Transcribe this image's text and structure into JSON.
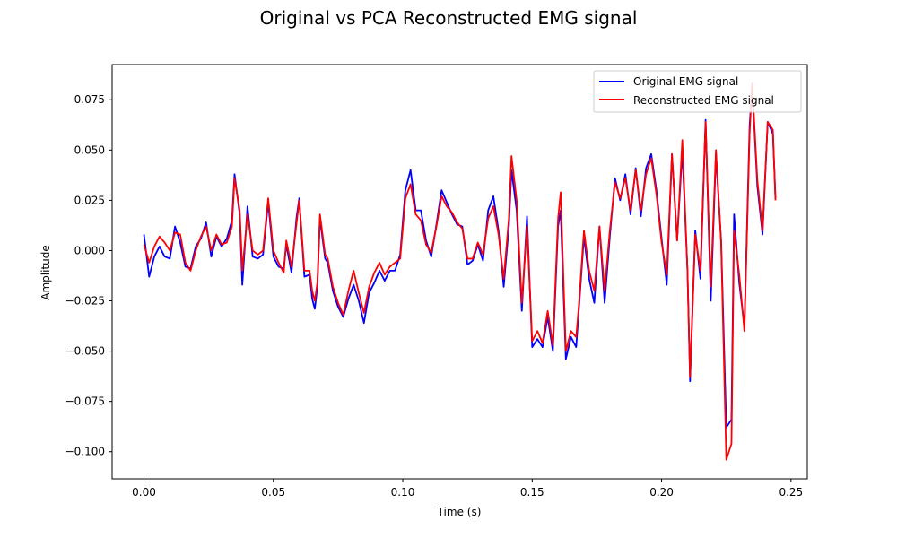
{
  "chart_data": {
    "type": "line",
    "title": "Original vs PCA Reconstructed EMG signal",
    "xlabel": "Time (s)",
    "ylabel": "Amplitude",
    "xlim": [
      -0.0123,
      0.2563
    ],
    "ylim": [
      -0.1135,
      0.0925
    ],
    "x_ticks": [
      0.0,
      0.05,
      0.1,
      0.15,
      0.2,
      0.25
    ],
    "x_tick_labels": [
      "0.00",
      "0.05",
      "0.10",
      "0.15",
      "0.20",
      "0.25"
    ],
    "y_ticks": [
      -0.1,
      -0.075,
      -0.05,
      -0.025,
      0.0,
      0.025,
      0.05,
      0.075
    ],
    "y_tick_labels": [
      "−0.100",
      "−0.075",
      "−0.050",
      "−0.025",
      "0.000",
      "0.025",
      "0.050",
      "0.075"
    ],
    "grid": false,
    "legend_position": "top-right",
    "series": [
      {
        "name": "Original EMG signal",
        "color": "#0000ff",
        "points": [
          [
            0.0,
            0.008
          ],
          [
            0.002,
            -0.013
          ],
          [
            0.004,
            -0.003
          ],
          [
            0.006,
            0.002
          ],
          [
            0.008,
            -0.003
          ],
          [
            0.01,
            -0.004
          ],
          [
            0.012,
            0.012
          ],
          [
            0.014,
            0.004
          ],
          [
            0.016,
            -0.008
          ],
          [
            0.018,
            -0.009
          ],
          [
            0.02,
            0.002
          ],
          [
            0.022,
            0.006
          ],
          [
            0.024,
            0.014
          ],
          [
            0.026,
            -0.003
          ],
          [
            0.028,
            0.007
          ],
          [
            0.03,
            0.002
          ],
          [
            0.032,
            0.006
          ],
          [
            0.034,
            0.015
          ],
          [
            0.035,
            0.038
          ],
          [
            0.037,
            0.018
          ],
          [
            0.038,
            -0.017
          ],
          [
            0.04,
            0.022
          ],
          [
            0.042,
            -0.003
          ],
          [
            0.044,
            -0.004
          ],
          [
            0.046,
            -0.002
          ],
          [
            0.048,
            0.024
          ],
          [
            0.05,
            -0.003
          ],
          [
            0.052,
            -0.008
          ],
          [
            0.054,
            -0.009
          ],
          [
            0.055,
            0.003
          ],
          [
            0.057,
            -0.011
          ],
          [
            0.059,
            0.017
          ],
          [
            0.06,
            0.026
          ],
          [
            0.062,
            -0.013
          ],
          [
            0.064,
            -0.012
          ],
          [
            0.065,
            -0.024
          ],
          [
            0.066,
            -0.029
          ],
          [
            0.067,
            -0.018
          ],
          [
            0.068,
            0.016
          ],
          [
            0.07,
            -0.004
          ],
          [
            0.071,
            -0.006
          ],
          [
            0.073,
            -0.02
          ],
          [
            0.075,
            -0.028
          ],
          [
            0.077,
            -0.033
          ],
          [
            0.079,
            -0.024
          ],
          [
            0.081,
            -0.017
          ],
          [
            0.083,
            -0.025
          ],
          [
            0.085,
            -0.036
          ],
          [
            0.087,
            -0.021
          ],
          [
            0.089,
            -0.016
          ],
          [
            0.091,
            -0.01
          ],
          [
            0.093,
            -0.015
          ],
          [
            0.095,
            -0.01
          ],
          [
            0.097,
            -0.01
          ],
          [
            0.099,
            -0.002
          ],
          [
            0.101,
            0.03
          ],
          [
            0.103,
            0.04
          ],
          [
            0.105,
            0.02
          ],
          [
            0.107,
            0.02
          ],
          [
            0.109,
            0.005
          ],
          [
            0.111,
            -0.003
          ],
          [
            0.113,
            0.013
          ],
          [
            0.115,
            0.03
          ],
          [
            0.117,
            0.024
          ],
          [
            0.119,
            0.018
          ],
          [
            0.121,
            0.013
          ],
          [
            0.123,
            0.012
          ],
          [
            0.125,
            -0.007
          ],
          [
            0.127,
            -0.005
          ],
          [
            0.129,
            0.003
          ],
          [
            0.131,
            -0.005
          ],
          [
            0.133,
            0.02
          ],
          [
            0.135,
            0.027
          ],
          [
            0.137,
            0.01
          ],
          [
            0.139,
            -0.018
          ],
          [
            0.141,
            0.012
          ],
          [
            0.142,
            0.04
          ],
          [
            0.144,
            0.02
          ],
          [
            0.146,
            -0.03
          ],
          [
            0.148,
            0.017
          ],
          [
            0.15,
            -0.048
          ],
          [
            0.152,
            -0.044
          ],
          [
            0.154,
            -0.048
          ],
          [
            0.156,
            -0.033
          ],
          [
            0.158,
            -0.05
          ],
          [
            0.16,
            0.012
          ],
          [
            0.161,
            0.02
          ],
          [
            0.163,
            -0.054
          ],
          [
            0.165,
            -0.043
          ],
          [
            0.167,
            -0.048
          ],
          [
            0.168,
            -0.03
          ],
          [
            0.17,
            0.007
          ],
          [
            0.172,
            -0.014
          ],
          [
            0.174,
            -0.026
          ],
          [
            0.176,
            0.012
          ],
          [
            0.178,
            -0.026
          ],
          [
            0.18,
            0.007
          ],
          [
            0.182,
            0.036
          ],
          [
            0.184,
            0.025
          ],
          [
            0.186,
            0.038
          ],
          [
            0.188,
            0.018
          ],
          [
            0.19,
            0.041
          ],
          [
            0.192,
            0.017
          ],
          [
            0.194,
            0.041
          ],
          [
            0.196,
            0.048
          ],
          [
            0.198,
            0.03
          ],
          [
            0.2,
            0.006
          ],
          [
            0.202,
            -0.017
          ],
          [
            0.204,
            0.048
          ],
          [
            0.206,
            0.005
          ],
          [
            0.208,
            0.05
          ],
          [
            0.21,
            -0.01
          ],
          [
            0.211,
            -0.065
          ],
          [
            0.213,
            0.01
          ],
          [
            0.215,
            -0.014
          ],
          [
            0.217,
            0.065
          ],
          [
            0.219,
            -0.025
          ],
          [
            0.221,
            0.048
          ],
          [
            0.223,
            0.005
          ],
          [
            0.225,
            -0.088
          ],
          [
            0.227,
            -0.084
          ],
          [
            0.228,
            0.018
          ],
          [
            0.23,
            -0.016
          ],
          [
            0.232,
            -0.038
          ],
          [
            0.234,
            0.062
          ],
          [
            0.235,
            0.082
          ],
          [
            0.237,
            0.032
          ],
          [
            0.239,
            0.008
          ],
          [
            0.241,
            0.064
          ],
          [
            0.243,
            0.058
          ],
          [
            0.244,
            0.026
          ]
        ]
      },
      {
        "name": "Reconstructed EMG signal",
        "color": "#ff0000",
        "points": [
          [
            0.0,
            0.003
          ],
          [
            0.002,
            -0.006
          ],
          [
            0.004,
            0.002
          ],
          [
            0.006,
            0.007
          ],
          [
            0.008,
            0.004
          ],
          [
            0.01,
            0.0
          ],
          [
            0.012,
            0.009
          ],
          [
            0.014,
            0.008
          ],
          [
            0.016,
            -0.006
          ],
          [
            0.018,
            -0.01
          ],
          [
            0.02,
            0.0
          ],
          [
            0.022,
            0.007
          ],
          [
            0.024,
            0.012
          ],
          [
            0.026,
            0.0
          ],
          [
            0.028,
            0.008
          ],
          [
            0.03,
            0.003
          ],
          [
            0.032,
            0.004
          ],
          [
            0.034,
            0.012
          ],
          [
            0.035,
            0.036
          ],
          [
            0.037,
            0.02
          ],
          [
            0.038,
            -0.01
          ],
          [
            0.04,
            0.018
          ],
          [
            0.042,
            0.0
          ],
          [
            0.044,
            -0.002
          ],
          [
            0.046,
            0.0
          ],
          [
            0.048,
            0.026
          ],
          [
            0.05,
            0.0
          ],
          [
            0.052,
            -0.006
          ],
          [
            0.054,
            -0.011
          ],
          [
            0.055,
            0.005
          ],
          [
            0.057,
            -0.008
          ],
          [
            0.059,
            0.014
          ],
          [
            0.06,
            0.025
          ],
          [
            0.062,
            -0.01
          ],
          [
            0.064,
            -0.01
          ],
          [
            0.065,
            -0.02
          ],
          [
            0.066,
            -0.025
          ],
          [
            0.067,
            -0.016
          ],
          [
            0.068,
            0.018
          ],
          [
            0.07,
            -0.002
          ],
          [
            0.071,
            -0.004
          ],
          [
            0.073,
            -0.018
          ],
          [
            0.075,
            -0.026
          ],
          [
            0.077,
            -0.032
          ],
          [
            0.079,
            -0.02
          ],
          [
            0.081,
            -0.01
          ],
          [
            0.083,
            -0.021
          ],
          [
            0.085,
            -0.031
          ],
          [
            0.087,
            -0.018
          ],
          [
            0.089,
            -0.011
          ],
          [
            0.091,
            -0.006
          ],
          [
            0.093,
            -0.012
          ],
          [
            0.095,
            -0.008
          ],
          [
            0.097,
            -0.006
          ],
          [
            0.099,
            -0.004
          ],
          [
            0.101,
            0.026
          ],
          [
            0.103,
            0.033
          ],
          [
            0.105,
            0.018
          ],
          [
            0.107,
            0.015
          ],
          [
            0.109,
            0.003
          ],
          [
            0.111,
            -0.001
          ],
          [
            0.113,
            0.012
          ],
          [
            0.115,
            0.027
          ],
          [
            0.117,
            0.022
          ],
          [
            0.119,
            0.019
          ],
          [
            0.121,
            0.014
          ],
          [
            0.123,
            0.011
          ],
          [
            0.125,
            -0.004
          ],
          [
            0.127,
            -0.004
          ],
          [
            0.129,
            0.004
          ],
          [
            0.131,
            -0.002
          ],
          [
            0.133,
            0.016
          ],
          [
            0.135,
            0.022
          ],
          [
            0.137,
            0.008
          ],
          [
            0.139,
            -0.014
          ],
          [
            0.141,
            0.016
          ],
          [
            0.142,
            0.047
          ],
          [
            0.144,
            0.025
          ],
          [
            0.146,
            -0.026
          ],
          [
            0.148,
            0.012
          ],
          [
            0.15,
            -0.045
          ],
          [
            0.152,
            -0.04
          ],
          [
            0.154,
            -0.046
          ],
          [
            0.156,
            -0.03
          ],
          [
            0.158,
            -0.047
          ],
          [
            0.16,
            0.016
          ],
          [
            0.161,
            0.029
          ],
          [
            0.163,
            -0.05
          ],
          [
            0.165,
            -0.04
          ],
          [
            0.167,
            -0.043
          ],
          [
            0.168,
            -0.028
          ],
          [
            0.17,
            0.01
          ],
          [
            0.172,
            -0.01
          ],
          [
            0.174,
            -0.02
          ],
          [
            0.176,
            0.012
          ],
          [
            0.178,
            -0.02
          ],
          [
            0.18,
            0.01
          ],
          [
            0.182,
            0.034
          ],
          [
            0.184,
            0.026
          ],
          [
            0.186,
            0.036
          ],
          [
            0.188,
            0.02
          ],
          [
            0.19,
            0.04
          ],
          [
            0.192,
            0.02
          ],
          [
            0.194,
            0.038
          ],
          [
            0.196,
            0.046
          ],
          [
            0.198,
            0.028
          ],
          [
            0.2,
            0.004
          ],
          [
            0.202,
            -0.012
          ],
          [
            0.204,
            0.048
          ],
          [
            0.206,
            0.005
          ],
          [
            0.208,
            0.055
          ],
          [
            0.21,
            -0.01
          ],
          [
            0.211,
            -0.063
          ],
          [
            0.213,
            0.008
          ],
          [
            0.215,
            -0.01
          ],
          [
            0.217,
            0.064
          ],
          [
            0.219,
            -0.018
          ],
          [
            0.221,
            0.05
          ],
          [
            0.223,
            0.004
          ],
          [
            0.225,
            -0.104
          ],
          [
            0.227,
            -0.096
          ],
          [
            0.228,
            0.01
          ],
          [
            0.23,
            -0.012
          ],
          [
            0.232,
            -0.04
          ],
          [
            0.234,
            0.058
          ],
          [
            0.235,
            0.083
          ],
          [
            0.237,
            0.035
          ],
          [
            0.239,
            0.01
          ],
          [
            0.241,
            0.064
          ],
          [
            0.243,
            0.06
          ],
          [
            0.244,
            0.025
          ]
        ]
      }
    ]
  }
}
